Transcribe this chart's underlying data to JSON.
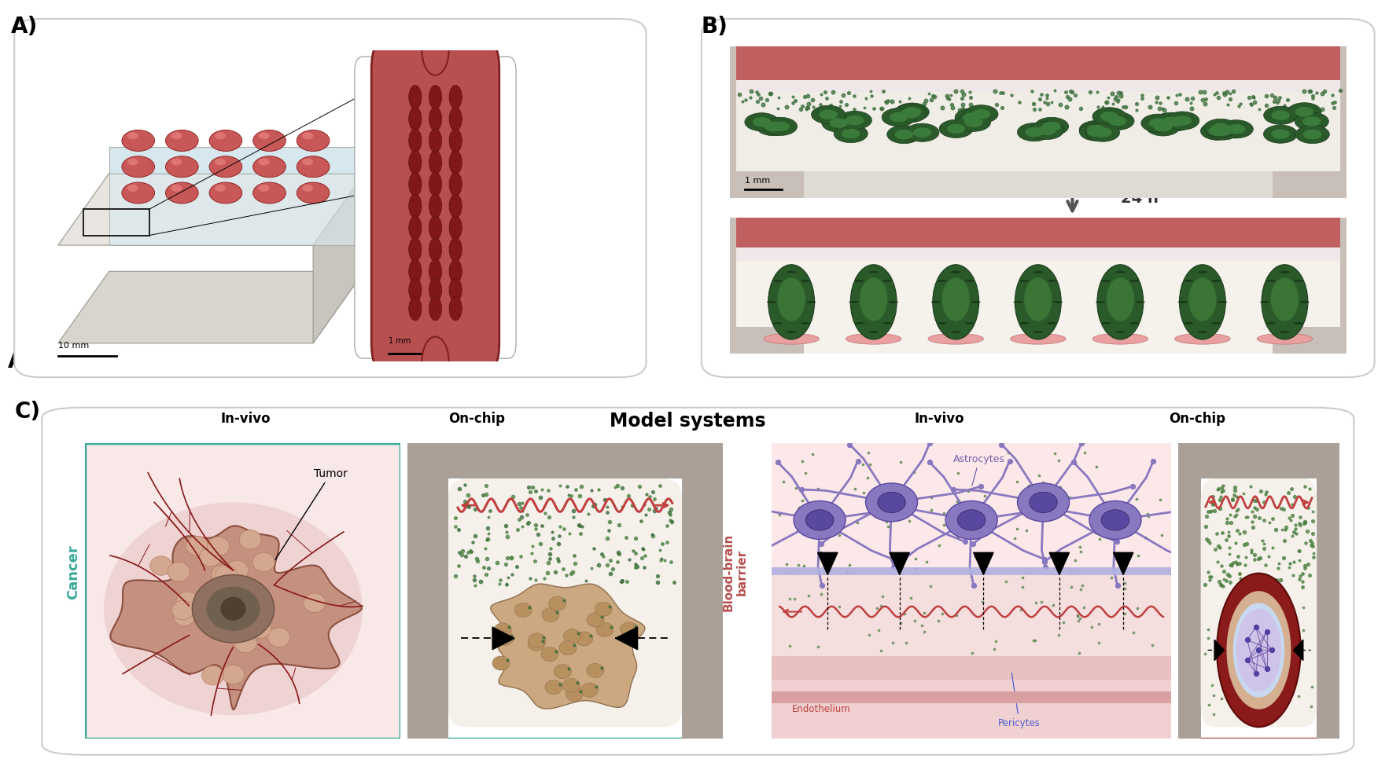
{
  "bg_color": "#ffffff",
  "panel_A_label": "A)",
  "panel_B_label": "B)",
  "panel_C_label": "C)",
  "model_systems_title": "Model systems",
  "cancer_label": "Cancer",
  "bbb_label": "Blood-brain\nbarrier",
  "invivo_label1": "In-vivo",
  "onchip_label1": "On-chip",
  "invivo_label2": "In-vivo",
  "onchip_label2": "On-chip",
  "tumor_label": "Tumor",
  "astrocytes_label": "Astrocytes",
  "endothelium_label": "Endothelium",
  "pericytes_label": "Pericytes",
  "time_label": "24 h",
  "scale_10mm": "10 mm",
  "scale_1mm_chip": "1 mm",
  "scale_1mm_B": "1 mm",
  "teal_color": "#3aaa9a",
  "red_border_color": "#b85050",
  "chip_red": "#b85050",
  "chip_light_red": "#c87070",
  "gray_wall": "#aaa098",
  "gray_light": "#ccc8c0",
  "inner_cream": "#f5f0ea",
  "inner_white": "#f8f6f2",
  "green_dot": "#3a6e3a",
  "green_dot2": "#4a8040",
  "dark_green": "#2a4e2a",
  "purple_cell": "#8878c0",
  "purple_dark": "#5848a0",
  "purple_light": "#b0a8e0",
  "tumor_pink": "#c4907a",
  "tumor_outer": "#d4a898",
  "tumor_core": "#907868",
  "tumor_dark": "#705848",
  "vessel_red": "#881818",
  "wavy_red": "#c04040",
  "pink_bg": "#f8e8e8",
  "salmon_bg": "#fce8e8"
}
